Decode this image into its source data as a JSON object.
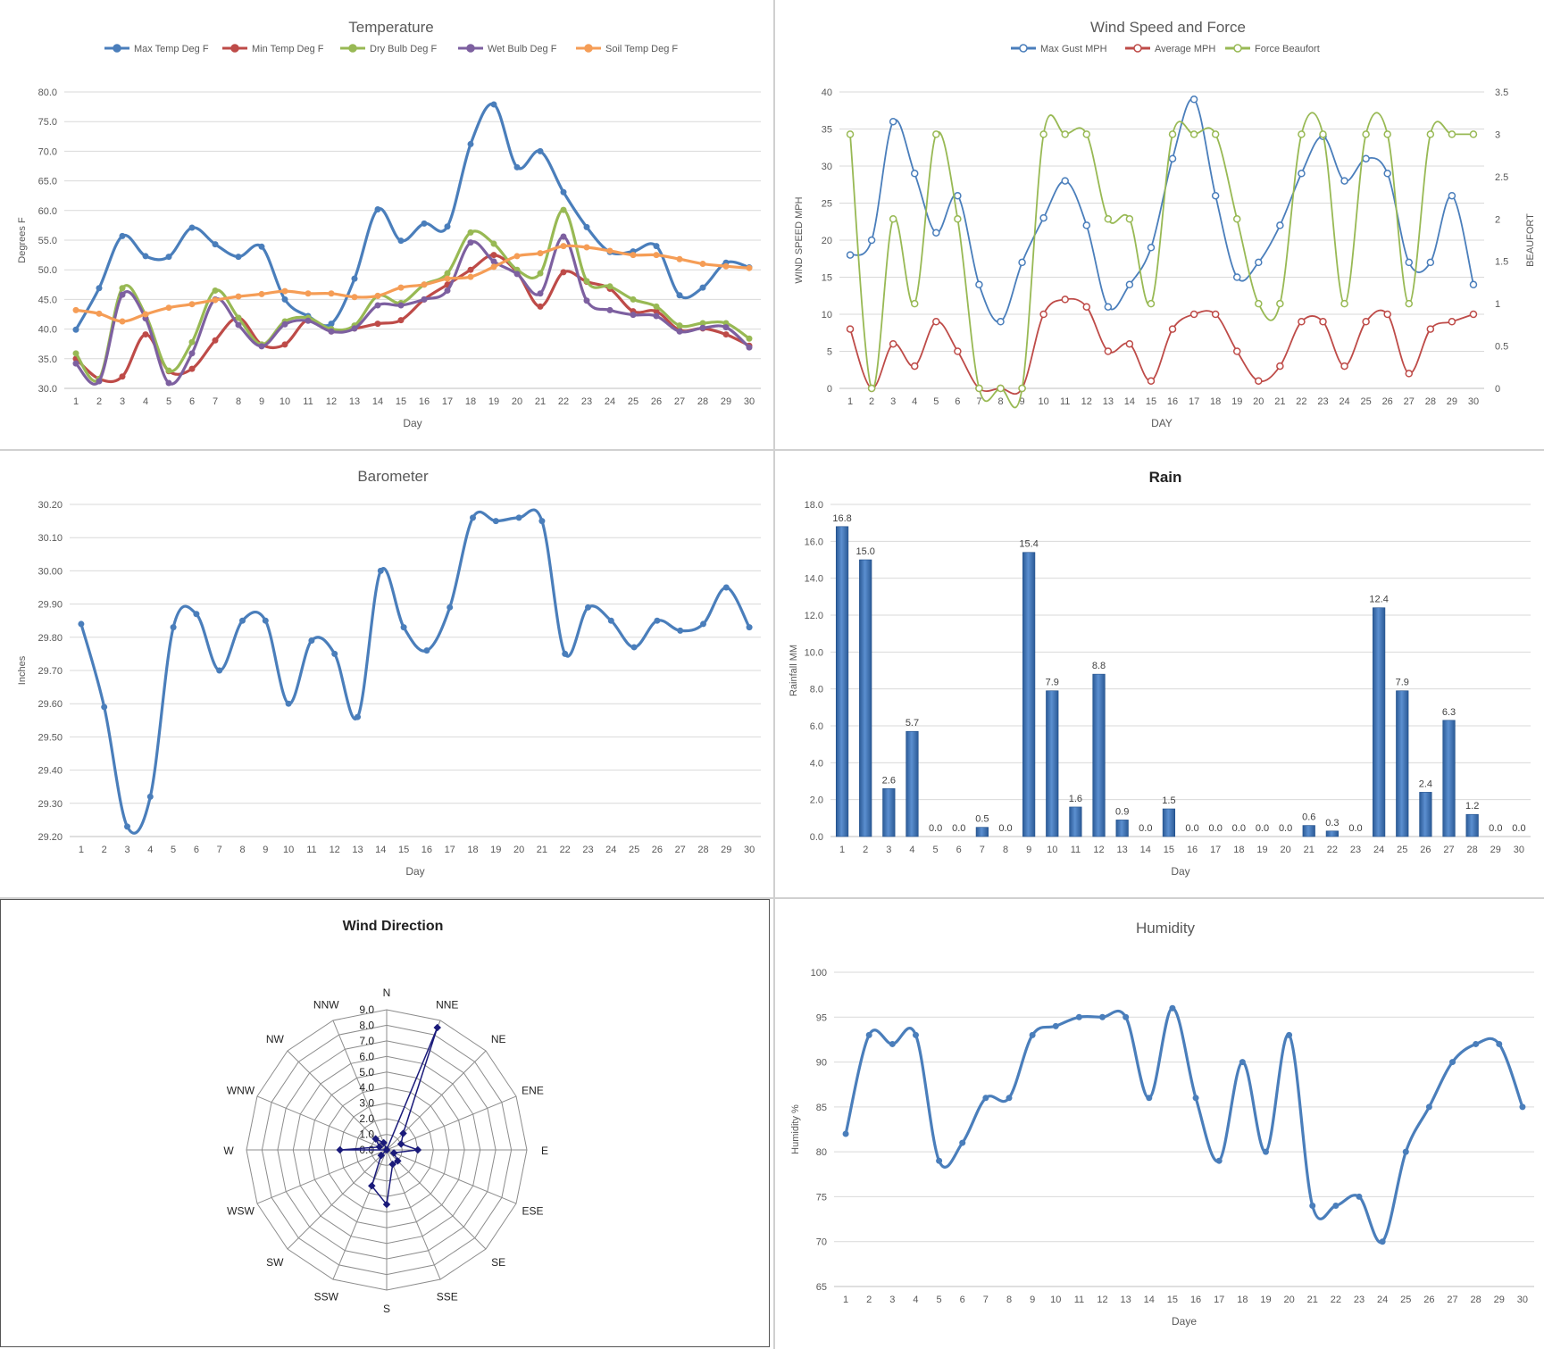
{
  "chart_data": [
    {
      "id": "temperature",
      "type": "line",
      "title": "Temperature",
      "xlabel": "Day",
      "ylabel": "Degrees F",
      "ylim": [
        30,
        80
      ],
      "yticks": [
        "30.0",
        "35.0",
        "40.0",
        "45.0",
        "50.0",
        "55.0",
        "60.0",
        "65.0",
        "70.0",
        "75.0",
        "80.0"
      ],
      "categories": [
        "1",
        "2",
        "3",
        "4",
        "5",
        "6",
        "7",
        "8",
        "9",
        "10",
        "11",
        "12",
        "13",
        "14",
        "15",
        "16",
        "17",
        "18",
        "19",
        "20",
        "21",
        "22",
        "23",
        "24",
        "25",
        "26",
        "27",
        "28",
        "29",
        "30"
      ],
      "legend_position": "top",
      "grid": true,
      "series": [
        {
          "name": "Max Temp Deg F",
          "color": "#4a7ebb",
          "values": [
            39.9,
            46.9,
            55.7,
            52.3,
            52.2,
            57.1,
            54.3,
            52.2,
            53.9,
            45.0,
            42.2,
            40.9,
            48.5,
            60.2,
            54.9,
            57.8,
            57.3,
            71.2,
            77.9,
            67.3,
            70.0,
            63.1,
            57.2,
            53.0,
            53.1,
            54.0,
            45.7,
            47.0,
            51.2,
            50.4
          ]
        },
        {
          "name": "Min Temp Deg F",
          "color": "#be4b48",
          "values": [
            35.0,
            31.6,
            32.0,
            39.1,
            32.9,
            33.3,
            38.1,
            41.9,
            37.4,
            37.4,
            41.6,
            39.6,
            40.1,
            40.9,
            41.5,
            45.0,
            47.5,
            50.0,
            52.5,
            49.6,
            43.8,
            49.6,
            48.0,
            46.8,
            43.0,
            43.0,
            39.8,
            40.1,
            39.1,
            37.2
          ]
        },
        {
          "name": "Dry Bulb Deg F",
          "color": "#98b954",
          "values": [
            35.9,
            31.6,
            46.9,
            42.4,
            33.0,
            37.8,
            46.5,
            41.9,
            37.4,
            41.3,
            41.9,
            40.0,
            40.6,
            45.6,
            44.4,
            47.5,
            49.4,
            56.3,
            54.4,
            50.0,
            49.4,
            60.1,
            48.1,
            47.2,
            45.0,
            43.8,
            40.6,
            41.0,
            41.0,
            38.4
          ]
        },
        {
          "name": "Wet Bulb Deg F",
          "color": "#7d60a0",
          "values": [
            34.2,
            31.2,
            45.8,
            41.8,
            30.9,
            35.9,
            45.0,
            40.7,
            37.1,
            40.8,
            41.4,
            39.6,
            40.1,
            44.0,
            44.0,
            45.0,
            46.5,
            54.6,
            51.4,
            49.3,
            46.0,
            55.6,
            44.8,
            43.2,
            42.4,
            42.2,
            39.6,
            40.2,
            40.3,
            36.9
          ]
        },
        {
          "name": "Soil Temp Deg F",
          "color": "#f59d56",
          "values": [
            43.2,
            42.6,
            41.3,
            42.5,
            43.6,
            44.2,
            44.9,
            45.5,
            45.9,
            46.4,
            46.0,
            46.0,
            45.4,
            45.6,
            47.0,
            47.5,
            48.5,
            48.8,
            50.5,
            52.3,
            52.8,
            54.0,
            53.8,
            53.2,
            52.5,
            52.5,
            51.8,
            51.0,
            50.6,
            50.3
          ]
        }
      ]
    },
    {
      "id": "wind",
      "type": "line",
      "title": "Wind Speed and Force",
      "xlabel": "DAY",
      "ylabel": "WIND SPEED MPH",
      "y2label": "BEAUFORT",
      "ylim": [
        0,
        40
      ],
      "y2lim": [
        0,
        3.5
      ],
      "yticks": [
        "0",
        "5",
        "10",
        "15",
        "20",
        "25",
        "30",
        "35",
        "40"
      ],
      "y2ticks": [
        "0",
        "0.5",
        "1",
        "1.5",
        "2",
        "2.5",
        "3",
        "3.5"
      ],
      "categories": [
        "1",
        "2",
        "3",
        "4",
        "5",
        "6",
        "7",
        "8",
        "9",
        "10",
        "11",
        "12",
        "13",
        "14",
        "15",
        "16",
        "17",
        "18",
        "19",
        "20",
        "21",
        "22",
        "23",
        "24",
        "25",
        "26",
        "27",
        "28",
        "29",
        "30"
      ],
      "legend_position": "top",
      "grid": true,
      "series": [
        {
          "name": "Max Gust MPH",
          "color": "#4a7ebb",
          "axis": "left",
          "values": [
            18,
            20,
            36,
            29,
            21,
            26,
            14,
            9,
            17,
            23,
            28,
            22,
            11,
            14,
            19,
            31,
            39,
            26,
            15,
            17,
            22,
            29,
            34,
            28,
            31,
            29,
            17,
            17,
            26,
            14
          ]
        },
        {
          "name": "Average MPH",
          "color": "#be4b48",
          "axis": "left",
          "values": [
            8,
            0,
            6,
            3,
            9,
            5,
            0,
            0,
            0,
            10,
            12,
            11,
            5,
            6,
            1,
            8,
            10,
            10,
            5,
            1,
            3,
            9,
            9,
            3,
            9,
            10,
            2,
            8,
            9,
            10
          ]
        },
        {
          "name": "Force Beaufort",
          "color": "#98b954",
          "axis": "right",
          "values": [
            3,
            0,
            2,
            1,
            3,
            2,
            0,
            0,
            0,
            3,
            3,
            3,
            2,
            2,
            1,
            3,
            3,
            3,
            2,
            1,
            1,
            3,
            3,
            1,
            3,
            3,
            1,
            3,
            3,
            3
          ]
        }
      ]
    },
    {
      "id": "barometer",
      "type": "line",
      "title": "Barometer",
      "xlabel": "Day",
      "ylabel": "Inches",
      "ylim": [
        29.2,
        30.2
      ],
      "yticks": [
        "29.20",
        "29.30",
        "29.40",
        "29.50",
        "29.60",
        "29.70",
        "29.80",
        "29.90",
        "30.00",
        "30.10",
        "30.20"
      ],
      "categories": [
        "1",
        "2",
        "3",
        "4",
        "5",
        "6",
        "7",
        "8",
        "9",
        "10",
        "11",
        "12",
        "13",
        "14",
        "15",
        "16",
        "17",
        "18",
        "19",
        "20",
        "21",
        "22",
        "23",
        "24",
        "25",
        "26",
        "27",
        "28",
        "29",
        "30"
      ],
      "grid": true,
      "series": [
        {
          "color": "#4a7ebb",
          "values": [
            29.84,
            29.59,
            29.23,
            29.32,
            29.83,
            29.87,
            29.7,
            29.85,
            29.85,
            29.6,
            29.79,
            29.75,
            29.56,
            30.0,
            29.83,
            29.76,
            29.89,
            30.16,
            30.15,
            30.16,
            30.15,
            29.75,
            29.89,
            29.85,
            29.77,
            29.85,
            29.82,
            29.84,
            29.95,
            29.83
          ]
        }
      ]
    },
    {
      "id": "rain",
      "type": "bar",
      "title": "Rain",
      "xlabel": "Day",
      "ylabel": "Rainfall MM",
      "ylim": [
        0,
        18
      ],
      "yticks": [
        "0.0",
        "2.0",
        "4.0",
        "6.0",
        "8.0",
        "10.0",
        "12.0",
        "14.0",
        "16.0",
        "18.0"
      ],
      "categories": [
        "1",
        "2",
        "3",
        "4",
        "5",
        "6",
        "7",
        "8",
        "9",
        "10",
        "11",
        "12",
        "13",
        "14",
        "15",
        "16",
        "17",
        "18",
        "19",
        "20",
        "21",
        "22",
        "23",
        "24",
        "25",
        "26",
        "27",
        "28",
        "29",
        "30"
      ],
      "grid": true,
      "values": [
        16.8,
        15.0,
        2.6,
        5.7,
        0.0,
        0.0,
        0.5,
        0.0,
        15.4,
        7.9,
        1.6,
        8.8,
        0.9,
        0.0,
        1.5,
        0.0,
        0.0,
        0.0,
        0.0,
        0.0,
        0.6,
        0.3,
        0.0,
        12.4,
        7.9,
        2.4,
        6.3,
        1.2,
        0.0,
        0.0
      ],
      "labels": [
        "16.8",
        "15.0",
        "2.6",
        "5.7",
        "0.0",
        "0.0",
        "0.5",
        "0.0",
        "15.4",
        "7.9",
        "1.6",
        "8.8",
        "0.9",
        "0.0",
        "1.5",
        "0.0",
        "0.0",
        "0.0",
        "0.0",
        "0.0",
        "0.6",
        "0.3",
        "0.0",
        "12.4",
        "7.9",
        "2.4",
        "6.3",
        "1.2",
        "0.0",
        "0.0"
      ],
      "color": "#3c6fb0"
    },
    {
      "id": "direction",
      "type": "radar",
      "title": "Wind Direction",
      "rlim": [
        0,
        9
      ],
      "rticks": [
        "0.0",
        "1.0",
        "2.0",
        "3.0",
        "4.0",
        "5.0",
        "6.0",
        "7.0",
        "8.0",
        "9.0"
      ],
      "categories": [
        "N",
        "NNE",
        "NE",
        "ENE",
        "E",
        "ESE",
        "SE",
        "SSE",
        "S",
        "SSW",
        "SW",
        "WSW",
        "W",
        "WNW",
        "NW",
        "NNW"
      ],
      "values": [
        0,
        8.5,
        1.5,
        1.0,
        2.0,
        0.5,
        1.0,
        1.0,
        3.5,
        2.5,
        0.5,
        0,
        3.0,
        0.5,
        1.0,
        0.5
      ],
      "color": "#1a1a7a"
    },
    {
      "id": "humidity",
      "type": "line",
      "title": "Humidity",
      "xlabel": "Daye",
      "ylabel": "Humidity %",
      "ylim": [
        65,
        100
      ],
      "yticks": [
        "65",
        "70",
        "75",
        "80",
        "85",
        "90",
        "95",
        "100"
      ],
      "categories": [
        "1",
        "2",
        "3",
        "4",
        "5",
        "6",
        "7",
        "8",
        "9",
        "10",
        "11",
        "12",
        "13",
        "14",
        "15",
        "16",
        "17",
        "18",
        "19",
        "20",
        "21",
        "22",
        "23",
        "24",
        "25",
        "26",
        "27",
        "28",
        "29",
        "30"
      ],
      "grid": true,
      "series": [
        {
          "color": "#4a7ebb",
          "values": [
            82,
            93,
            92,
            93,
            79,
            81,
            86,
            86,
            93,
            94,
            95,
            95,
            95,
            86,
            96,
            86,
            79,
            90,
            80,
            93,
            74,
            74,
            75,
            70,
            80,
            85,
            90,
            92,
            92,
            85
          ]
        }
      ]
    }
  ]
}
